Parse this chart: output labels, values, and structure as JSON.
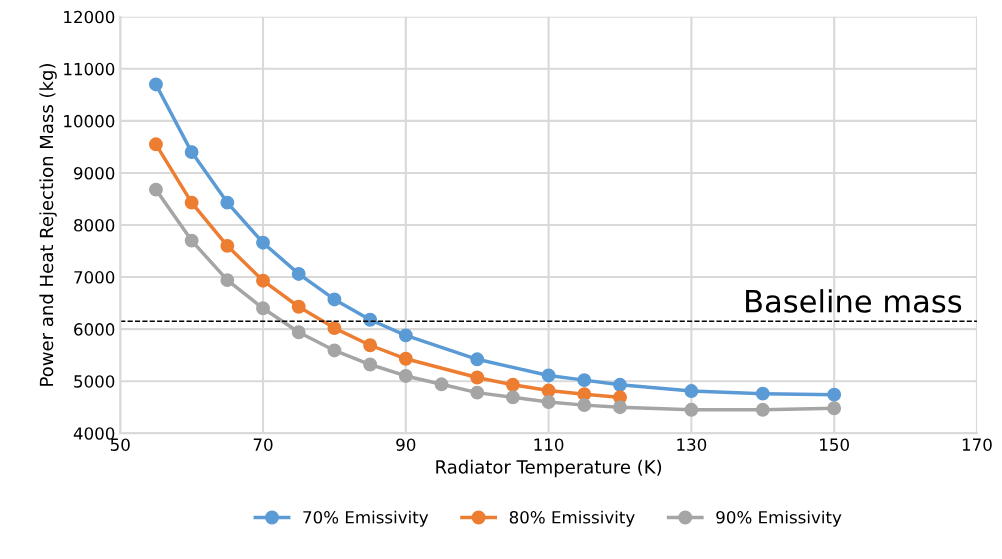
{
  "chart_data": {
    "type": "line",
    "xlabel": "Radiator Temperature (K)",
    "ylabel": "Power and Heat Rejection Mass (kg)",
    "xlim": [
      50,
      170
    ],
    "xticks": [
      50,
      70,
      90,
      110,
      130,
      150,
      170
    ],
    "ylim": [
      4000,
      12000
    ],
    "yticks": [
      4000,
      5000,
      6000,
      7000,
      8000,
      9000,
      10000,
      11000,
      12000
    ],
    "grid": true,
    "legend": "bottom",
    "marker": "circle",
    "line_style": "solid",
    "series": [
      {
        "name": "70% Emissivity",
        "color": "#5b9bd5",
        "x": [
          55,
          60,
          65,
          70,
          75,
          80,
          85,
          90,
          100,
          110,
          115,
          120,
          130,
          140,
          150
        ],
        "values": [
          10700,
          9400,
          8430,
          7660,
          7060,
          6570,
          6180,
          5880,
          5420,
          5110,
          5020,
          4930,
          4810,
          4760,
          4740
        ]
      },
      {
        "name": "80% Emissivity",
        "color": "#ed7d31",
        "x": [
          55,
          60,
          65,
          70,
          75,
          80,
          85,
          90,
          100,
          105,
          110,
          115,
          120
        ],
        "values": [
          9550,
          8430,
          7600,
          6930,
          6430,
          6020,
          5690,
          5430,
          5070,
          4930,
          4820,
          4750,
          4690
        ]
      },
      {
        "name": "90% Emissivity",
        "color": "#a5a5a5",
        "x": [
          55,
          60,
          65,
          70,
          75,
          80,
          85,
          90,
          95,
          100,
          105,
          110,
          115,
          120,
          130,
          140,
          150
        ],
        "values": [
          8680,
          7700,
          6940,
          6400,
          5940,
          5590,
          5320,
          5100,
          4940,
          4780,
          4690,
          4600,
          4540,
          4500,
          4450,
          4450,
          4480
        ]
      }
    ],
    "ref_lines": [
      {
        "axis": "y",
        "value": 6150,
        "label": "Baseline mass",
        "color": "#000000",
        "line_style": "dashed"
      }
    ]
  }
}
